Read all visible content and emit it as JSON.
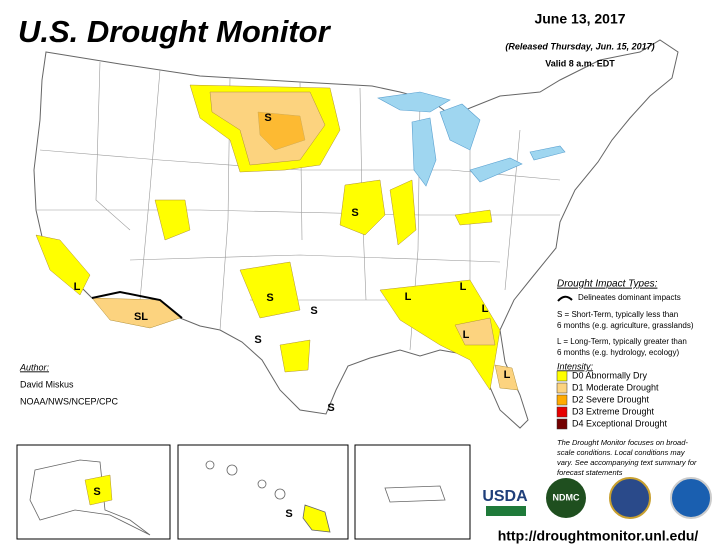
{
  "header": {
    "title": "U.S. Drought Monitor",
    "date": "June 13, 2017",
    "released": "(Released Thursday, Jun. 15, 2017)",
    "valid": "Valid 8 a.m. EDT"
  },
  "impact": {
    "title": "Drought Impact Types:",
    "dominant": "Delineates dominant impacts",
    "short": [
      "S = Short-Term, typically less than",
      "6 months (e.g. agriculture, grasslands)"
    ],
    "long": [
      "L = Long-Term, typically greater than",
      "6 months (e.g. hydrology, ecology)"
    ]
  },
  "intensity": {
    "title": "Intensity:",
    "levels": [
      {
        "label": "D0 Abnormally Dry",
        "color": "#ffff00"
      },
      {
        "label": "D1 Moderate Drought",
        "color": "#fcd37f"
      },
      {
        "label": "D2 Severe Drought",
        "color": "#ffaa00"
      },
      {
        "label": "D3 Extreme Drought",
        "color": "#e60000"
      },
      {
        "label": "D4 Exceptional Drought",
        "color": "#730000"
      }
    ]
  },
  "author": {
    "title": "Author:",
    "name": "David Miskus",
    "org": "NOAA/NWS/NCEP/CPC"
  },
  "note": [
    "The Drought Monitor focuses on broad-",
    "scale conditions. Local conditions may",
    "vary. See accompanying text summary for",
    "forecast statements"
  ],
  "map_labels": [
    "S",
    "S",
    "L",
    "SL",
    "S",
    "S",
    "S",
    "S",
    "L",
    "L",
    "L",
    "L",
    "L",
    "S",
    "S"
  ],
  "logos": [
    "USDA",
    "NDMC"
  ],
  "url": "http://droughtmonitor.unl.edu/"
}
